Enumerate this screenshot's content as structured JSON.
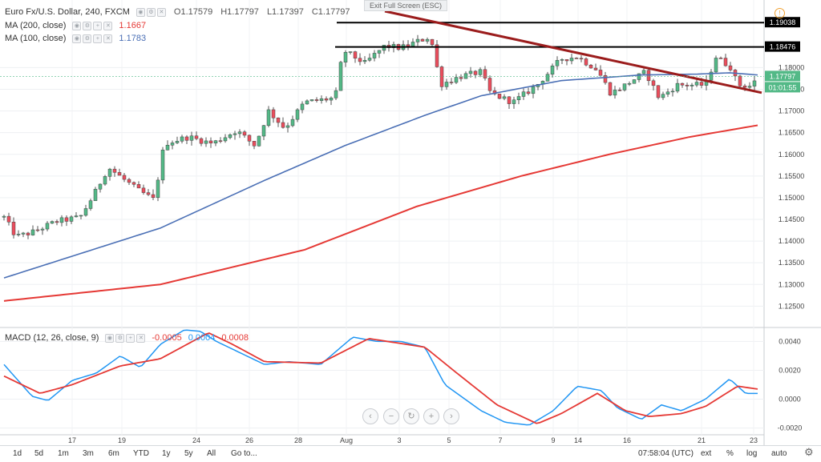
{
  "legend": {
    "symbol": "Euro Fx/U.S. Dollar, 240, FXCM",
    "open": "O1.17579",
    "high": "H1.17797",
    "low": "L1.17397",
    "close": "C1.17797",
    "ma200_label": "MA (200, close)",
    "ma200_value": "1.1667",
    "ma100_label": "MA (100, close)",
    "ma100_value": "1.1783",
    "macd_label": "MACD (12, 26, close, 9)",
    "macd_hist": "-0.0005",
    "macd_line": "0.0004",
    "macd_signal": "0.0008"
  },
  "exit_fullscreen": "Exit Full Screen (ESC)",
  "price_axis": {
    "ticks": [
      "1.18000",
      "1.17500",
      "1.17000",
      "1.16500",
      "1.16000",
      "1.15500",
      "1.15000",
      "1.14500",
      "1.14000",
      "1.13500",
      "1.13000",
      "1.12500"
    ],
    "labels": [
      "1.19038",
      "1.18476",
      "1.17797",
      "01:01:55"
    ]
  },
  "macd_axis": {
    "ticks": [
      "0.0040",
      "0.0020",
      "0.0000",
      "-0.0020"
    ]
  },
  "time_axis": {
    "labels": [
      "17",
      "19",
      "24",
      "26",
      "28",
      "Aug",
      "3",
      "5",
      "7",
      "9",
      "14",
      "16",
      "21",
      "23"
    ]
  },
  "bottom_bar": {
    "timeframes": [
      "1d",
      "5d",
      "1m",
      "3m",
      "6m",
      "YTD",
      "1y",
      "5y",
      "All",
      "Go to..."
    ],
    "clock": "07:58:04 (UTC)",
    "ext": "ext",
    "percent": "%",
    "log": "log",
    "auto": "auto"
  },
  "icons": {
    "alarm": "alarm-icon",
    "settings": "gear-icon"
  },
  "colors": {
    "up_candle": "#53b987",
    "down_candle": "#eb4d5c",
    "ma200": "#e53935",
    "ma100": "#4a6fb5",
    "trendline": "#9b1c1c",
    "macd_line": "#2196f3",
    "signal_line": "#e53935"
  },
  "chart_data": {
    "type": "candlestick",
    "title": "Euro Fx/U.S. Dollar, 240, FXCM",
    "ylim": [
      1.121,
      1.193
    ],
    "horizontal_levels": [
      1.19038,
      1.18476
    ],
    "trendline": {
      "start_price": 1.193,
      "end_price": 1.1742
    },
    "ma200_end": 1.1667,
    "ma100_end": 1.1783,
    "last_close": 1.17797
  }
}
